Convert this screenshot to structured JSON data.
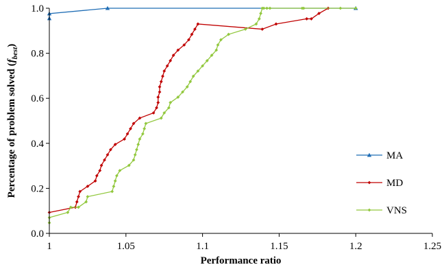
{
  "chart_data": {
    "type": "line",
    "xlabel": "Performance ratio",
    "ylabel_main": "Percentage of problem solved (",
    "ylabel_f": "f",
    "ylabel_sub": "best",
    "ylabel_close": ")",
    "xlim": [
      1.0,
      1.25
    ],
    "ylim": [
      0.0,
      1.0
    ],
    "x_ticks": [
      1.0,
      1.05,
      1.1,
      1.15,
      1.2,
      1.25
    ],
    "x_tick_labels": [
      "1",
      "1.05",
      "1.1",
      "1.15",
      "1.2",
      "1.25"
    ],
    "y_ticks": [
      0.0,
      0.2,
      0.4,
      0.6,
      0.8,
      1.0
    ],
    "y_tick_labels": [
      "0.0",
      "0.2",
      "0.4",
      "0.6",
      "0.8",
      "1.0"
    ],
    "grid": false,
    "legend_position": "right",
    "series": [
      {
        "name": "MA",
        "color": "#1f6db5",
        "marker": "triangle",
        "x": [
          1.0,
          1.0,
          1.038,
          1.2
        ],
        "y": [
          0.955,
          0.976,
          1.0,
          1.0
        ]
      },
      {
        "name": "MD",
        "color": "#c00000",
        "marker": "diamond",
        "x": [
          1.0,
          1.017,
          1.018,
          1.019,
          1.02,
          1.025,
          1.03,
          1.031,
          1.033,
          1.034,
          1.036,
          1.038,
          1.04,
          1.041,
          1.043,
          1.049,
          1.051,
          1.053,
          1.055,
          1.056,
          1.058,
          1.059,
          1.06,
          1.068,
          1.07,
          1.071,
          1.071,
          1.072,
          1.072,
          1.073,
          1.074,
          1.075,
          1.077,
          1.079,
          1.08,
          1.082,
          1.084,
          1.086,
          1.088,
          1.09,
          1.093,
          1.095,
          1.095,
          1.096,
          1.098,
          1.139,
          1.148,
          1.168,
          1.17,
          1.174,
          1.178,
          1.18,
          1.182,
          1.183
        ],
        "y": [
          0.093,
          0.116,
          0.14,
          0.163,
          0.186,
          0.209,
          0.233,
          0.256,
          0.279,
          0.302,
          0.326,
          0.349,
          0.372,
          0.395,
          0.419,
          0.442,
          0.465,
          0.488,
          0.512,
          0.535,
          0.558,
          0.581,
          0.605,
          0.628,
          0.651,
          0.674,
          0.698,
          0.721,
          0.744,
          0.767,
          0.791,
          0.814,
          0.837,
          0.86,
          0.884,
          0.907,
          0.93,
          0.953,
          0.977,
          1.0,
          1.0,
          1.0,
          1.0,
          1.0,
          1.0,
          0.907,
          0.93,
          0.953,
          0.977,
          1.0,
          1.0,
          1.0,
          1.0,
          1.0
        ],
        "x_ordered": [
          1.0,
          1.017,
          1.018,
          1.019,
          1.02,
          1.025,
          1.03,
          1.031,
          1.033,
          1.034,
          1.036,
          1.038,
          1.04,
          1.043,
          1.049,
          1.051,
          1.053,
          1.055,
          1.059,
          1.068,
          1.07,
          1.071,
          1.071,
          1.072,
          1.072,
          1.073,
          1.074,
          1.075,
          1.077,
          1.079,
          1.081,
          1.084,
          1.088,
          1.091,
          1.093,
          1.095,
          1.097,
          1.139,
          1.148,
          1.168,
          1.171,
          1.176,
          1.182
        ],
        "y_ordered": [
          0.093,
          0.116,
          0.14,
          0.163,
          0.186,
          0.209,
          0.233,
          0.256,
          0.279,
          0.302,
          0.326,
          0.349,
          0.372,
          0.395,
          0.419,
          0.442,
          0.465,
          0.488,
          0.512,
          0.535,
          0.558,
          0.581,
          0.605,
          0.628,
          0.651,
          0.674,
          0.698,
          0.721,
          0.744,
          0.767,
          0.791,
          0.814,
          0.837,
          0.86,
          0.884,
          0.907,
          0.93,
          0.907,
          0.93,
          0.953,
          0.953,
          0.977,
          1.0
        ]
      },
      {
        "name": "VNS",
        "color": "#92c83e",
        "marker": "diamond",
        "x": [
          1.0,
          1.0,
          1.012,
          1.014,
          1.019,
          1.024,
          1.025,
          1.041,
          1.042,
          1.043,
          1.044,
          1.046,
          1.052,
          1.055,
          1.056,
          1.057,
          1.058,
          1.059,
          1.061,
          1.062,
          1.063,
          1.073,
          1.075,
          1.078,
          1.079,
          1.084,
          1.087,
          1.09,
          1.092,
          1.094,
          1.097,
          1.1,
          1.103,
          1.106,
          1.109,
          1.11,
          1.112,
          1.117,
          1.128,
          1.135,
          1.137,
          1.138,
          1.139,
          1.14,
          1.142,
          1.144,
          1.165,
          1.166,
          1.19,
          1.2
        ],
        "y": [
          0.047,
          0.07,
          0.093,
          0.116,
          0.116,
          0.14,
          0.163,
          0.186,
          0.209,
          0.233,
          0.256,
          0.279,
          0.302,
          0.326,
          0.349,
          0.372,
          0.395,
          0.419,
          0.442,
          0.465,
          0.488,
          0.512,
          0.535,
          0.558,
          0.581,
          0.605,
          0.628,
          0.651,
          0.674,
          0.698,
          0.721,
          0.744,
          0.767,
          0.791,
          0.814,
          0.837,
          0.86,
          0.884,
          0.907,
          0.93,
          0.953,
          0.977,
          1.0,
          1.0,
          1.0,
          1.0,
          1.0,
          1.0,
          1.0,
          1.0
        ]
      }
    ]
  }
}
